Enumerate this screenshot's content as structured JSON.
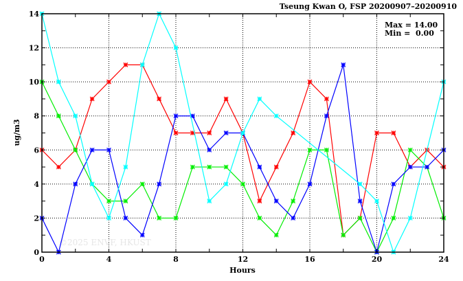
{
  "chart_data": {
    "type": "line",
    "title": "Tseung Kwan O, FSP 20200907–20200910",
    "xlabel": "Hours",
    "ylabel": "ug/m3",
    "xlim": [
      0,
      24
    ],
    "ylim": [
      0,
      14
    ],
    "xticks": [
      0,
      4,
      8,
      12,
      16,
      20,
      24
    ],
    "yticks": [
      0,
      2,
      4,
      6,
      8,
      10,
      12,
      14
    ],
    "grid": true,
    "stats": {
      "max": "Max = 14.00",
      "min": "Min =  0.00"
    },
    "watermark": "©2025  ENVF, HKUST",
    "x": [
      0,
      1,
      2,
      3,
      4,
      5,
      6,
      7,
      8,
      9,
      10,
      11,
      12,
      13,
      14,
      15,
      16,
      17,
      18,
      19,
      20,
      21,
      22,
      23,
      24
    ],
    "series": [
      {
        "name": "red",
        "color": "#ff0000",
        "values": [
          6,
          5,
          6,
          9,
          10,
          11,
          11,
          9,
          7,
          7,
          7,
          9,
          7,
          3,
          5,
          7,
          10,
          9,
          1,
          2,
          7,
          7,
          5,
          6,
          5
        ]
      },
      {
        "name": "green",
        "color": "#00ee00",
        "values": [
          10,
          8,
          6,
          4,
          3,
          3,
          4,
          2,
          2,
          5,
          5,
          5,
          4,
          2,
          1,
          3,
          6,
          6,
          1,
          2,
          0,
          2,
          6,
          5,
          2
        ]
      },
      {
        "name": "blue",
        "color": "#0000ff",
        "values": [
          2,
          0,
          4,
          6,
          6,
          2,
          1,
          4,
          8,
          8,
          6,
          7,
          7,
          5,
          3,
          2,
          4,
          8,
          11,
          3,
          0,
          4,
          5,
          5,
          6
        ]
      },
      {
        "name": "cyan",
        "color": "#00ffff",
        "values": [
          14,
          10,
          8,
          4,
          2,
          5,
          11,
          14,
          12,
          null,
          3,
          4,
          7,
          9,
          8,
          null,
          null,
          null,
          null,
          4,
          3,
          0,
          2,
          null,
          10
        ]
      }
    ]
  }
}
